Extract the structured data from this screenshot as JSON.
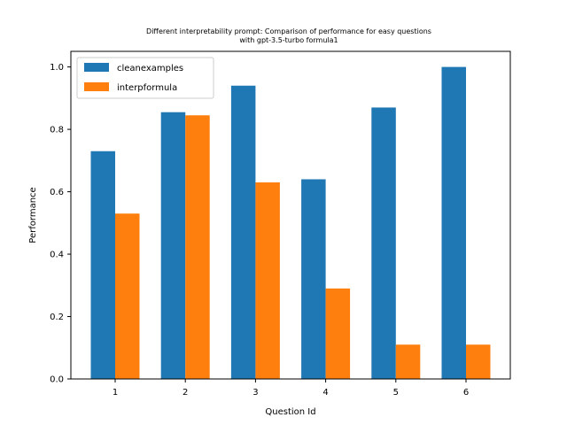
{
  "chart_data": {
    "type": "bar",
    "title_line1": "Different interpretability prompt: Comparison of performance for easy questions",
    "title_line2": "with gpt-3.5-turbo formula1",
    "xlabel": "Question Id",
    "ylabel": "Performance",
    "categories": [
      "1",
      "2",
      "3",
      "4",
      "5",
      "6"
    ],
    "ylim": [
      0,
      1.05
    ],
    "yticks": [
      "0.0",
      "0.2",
      "0.4",
      "0.6",
      "0.8",
      "1.0"
    ],
    "grid": false,
    "legend_position": "upper-left",
    "series": [
      {
        "name": "cleanexamples",
        "color": "#1f77b4",
        "values": [
          0.73,
          0.855,
          0.94,
          0.64,
          0.87,
          1.0
        ]
      },
      {
        "name": "interpformula",
        "color": "#ff7f0e",
        "values": [
          0.53,
          0.845,
          0.63,
          0.29,
          0.11,
          0.11
        ]
      }
    ]
  }
}
